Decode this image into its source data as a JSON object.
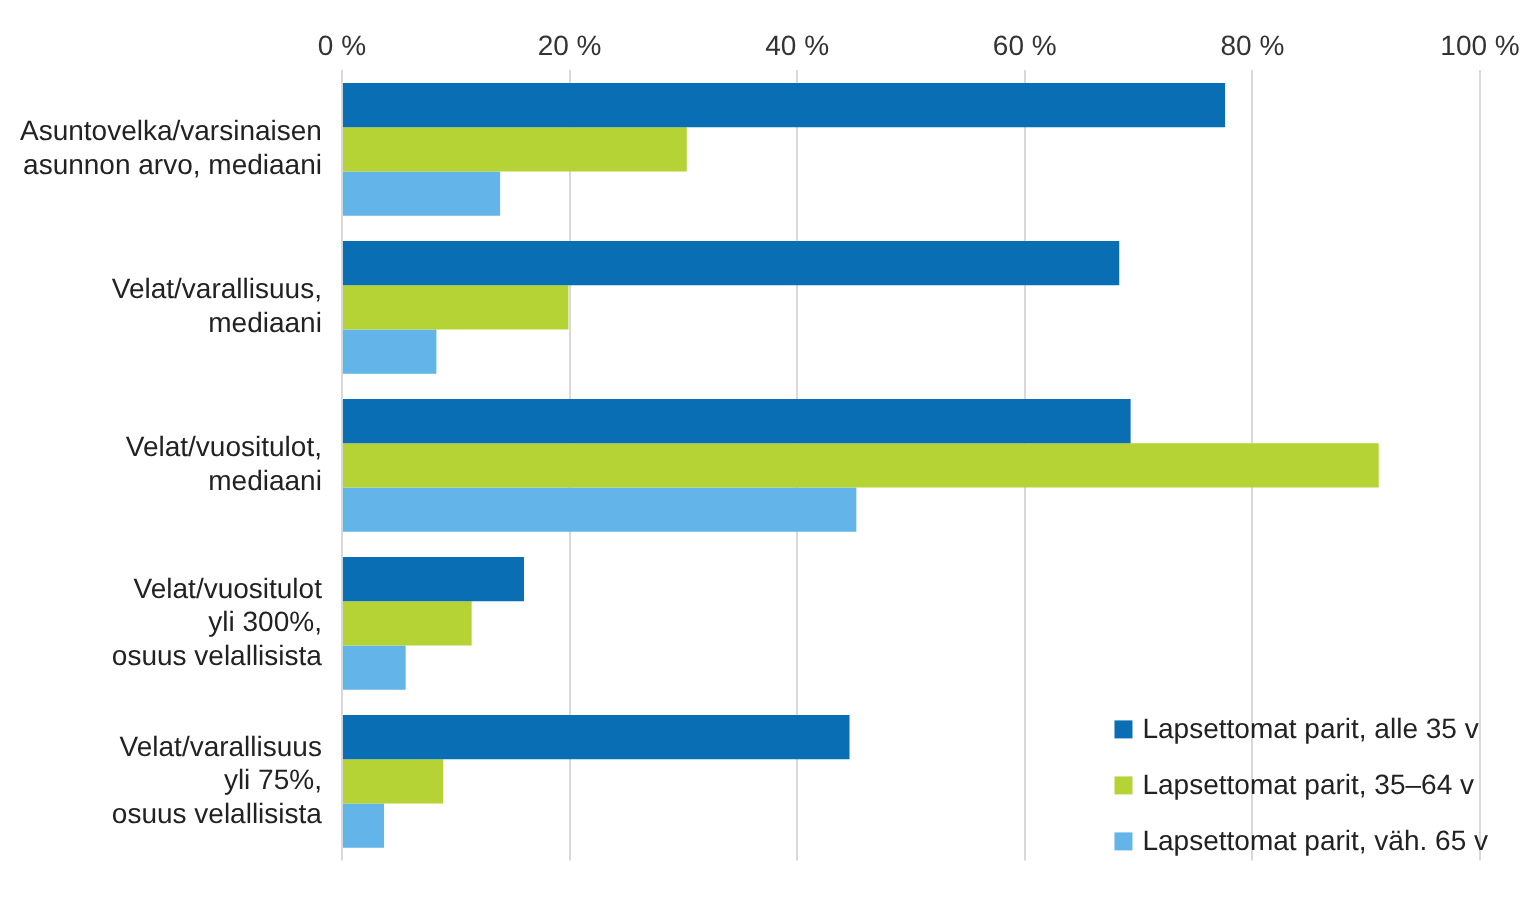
{
  "chart_data": {
    "type": "bar",
    "orientation": "horizontal",
    "categories": [
      "Asuntovelka/varsinaisen\nasunnon arvo, mediaani",
      "Velat/varallisuus,\nmediaani",
      "Velat/vuositulot,\nmediaani",
      "Velat/vuositulot\nyli 300%,\nosuus velallisista",
      "Velat/varallisuus\nyli 75%,\nosuus velallisista"
    ],
    "series": [
      {
        "name": "Lapsettomat parit, alle 35 v",
        "color": "#0a6eb4",
        "values": [
          77.6,
          68.3,
          69.3,
          16.0,
          44.6
        ]
      },
      {
        "name": "Lapsettomat parit, 35–64 v",
        "color": "#b5d334",
        "values": [
          30.3,
          19.9,
          91.1,
          11.4,
          8.9
        ]
      },
      {
        "name": "Lapsettomat parit, väh. 65 v",
        "color": "#63b4e8",
        "values": [
          13.9,
          8.3,
          45.2,
          5.6,
          3.7
        ]
      }
    ],
    "xlim": [
      0,
      100
    ],
    "xticks": [
      {
        "value": 0,
        "label": "0 %"
      },
      {
        "value": 20,
        "label": "20 %"
      },
      {
        "value": 40,
        "label": "40 %"
      },
      {
        "value": 60,
        "label": "60 %"
      },
      {
        "value": 80,
        "label": "80 %"
      },
      {
        "value": 100,
        "label": "100 %"
      }
    ],
    "grid": "x",
    "legend": "bottom right"
  }
}
